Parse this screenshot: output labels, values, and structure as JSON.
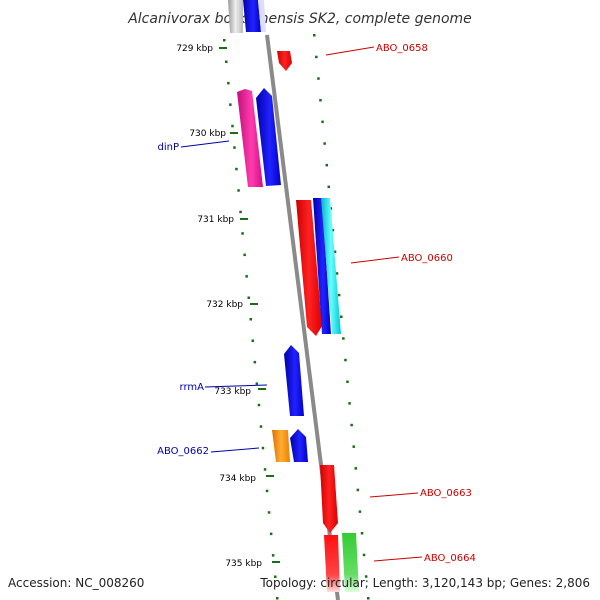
{
  "title": "Alcanivorax borkumensis SK2, complete genome",
  "footer": {
    "accession": "Accession: NC_008260",
    "topology": "Topology: circular; Length: 3,120,143 bp; Genes: 2,806"
  },
  "colors": {
    "forward_label": "#cc0000",
    "reverse_label": "#0000aa",
    "backbone": "#888888",
    "dots": "#1a6e1a"
  },
  "ticks": [
    "729 kbp",
    "730 kbp",
    "731 kbp",
    "732 kbp",
    "733 kbp",
    "734 kbp",
    "735 kbp"
  ],
  "gene_labels": {
    "abo_0658": "ABO_0658",
    "dinp": "dinP",
    "abo_0660": "ABO_0660",
    "rrma": "rrmA",
    "abo_0662": "ABO_0662",
    "abo_0663": "ABO_0663",
    "abo_0664": "ABO_0664"
  },
  "genes": [
    {
      "name": "top-gray",
      "strand": "reverse",
      "color": "#cccccc"
    },
    {
      "name": "top-blue",
      "strand": "reverse",
      "color": "#0000cc"
    },
    {
      "name": "ABO_0658",
      "strand": "forward",
      "color": "#ff0000"
    },
    {
      "name": "dinP",
      "strand": "reverse",
      "color": "#ee1493"
    },
    {
      "name": "dinP-adjacent",
      "strand": "reverse",
      "color": "#0000dd"
    },
    {
      "name": "ABO_0660-red",
      "strand": "forward",
      "color": "#ff0000"
    },
    {
      "name": "ABO_0660-blue",
      "strand": "forward",
      "color": "#0000dd"
    },
    {
      "name": "ABO_0660-cyan",
      "strand": "forward",
      "color": "#00dddd"
    },
    {
      "name": "rrmA",
      "strand": "reverse",
      "color": "#0000dd"
    },
    {
      "name": "ABO_0662",
      "strand": "reverse",
      "color": "#ff8c00"
    },
    {
      "name": "ABO_0662-adjacent",
      "strand": "reverse",
      "color": "#0000dd"
    },
    {
      "name": "ABO_0663",
      "strand": "forward",
      "color": "#ff0000"
    },
    {
      "name": "ABO_0664-red",
      "strand": "forward",
      "color": "#ff0000"
    },
    {
      "name": "ABO_0664-green",
      "strand": "forward",
      "color": "#33cc33"
    }
  ]
}
